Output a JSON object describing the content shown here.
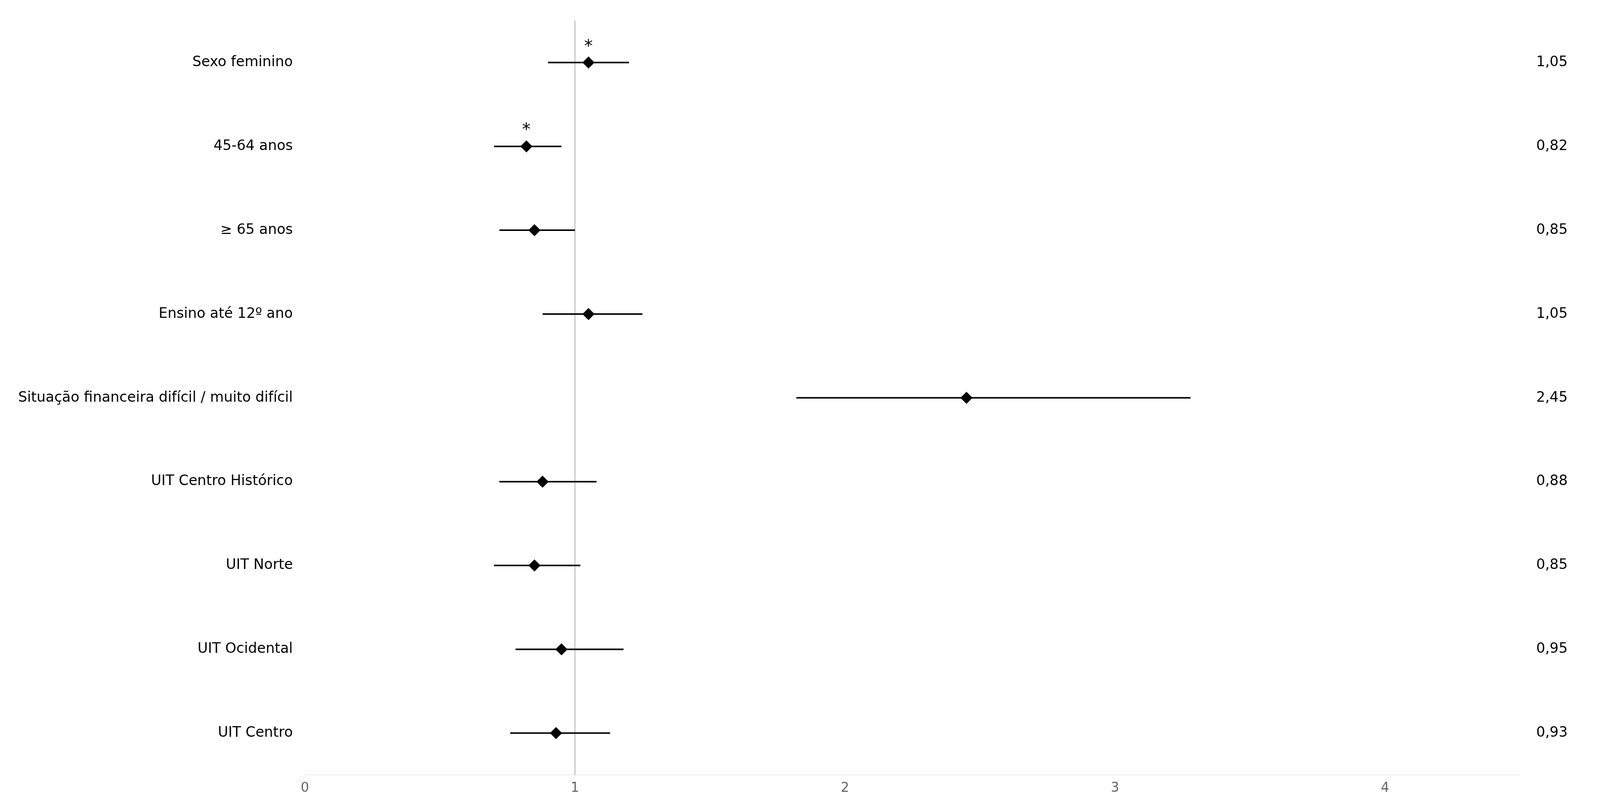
{
  "chart_data": {
    "type": "forest",
    "categories": [
      "Sexo feminino",
      "45-64 anos",
      "≥ 65 anos",
      "Ensino até 12º ano",
      "Situação financeira difícil / muito difícil",
      "UIT Centro Histórico",
      "UIT Norte",
      "UIT Ocidental",
      "UIT Centro"
    ],
    "values": [
      1.05,
      0.82,
      0.85,
      1.05,
      2.45,
      0.88,
      0.85,
      0.95,
      0.93
    ],
    "ci_low": [
      0.9,
      0.7,
      0.72,
      0.88,
      1.82,
      0.72,
      0.7,
      0.78,
      0.76
    ],
    "ci_high": [
      1.2,
      0.95,
      1.0,
      1.25,
      3.28,
      1.08,
      1.02,
      1.18,
      1.13
    ],
    "value_labels": [
      "1,05",
      "0,82",
      "0,85",
      "1,05",
      "2,45",
      "0,88",
      "0,85",
      "0,95",
      "0,93"
    ],
    "significance_labels": [
      "*",
      "*",
      null,
      null,
      null,
      null,
      null,
      null,
      null
    ],
    "reference_line": 1.0,
    "xlim": [
      0,
      4.5
    ],
    "xticks": [
      0,
      1,
      2,
      3,
      4
    ],
    "color": "#000000",
    "marker": "diamond",
    "grid": false
  }
}
